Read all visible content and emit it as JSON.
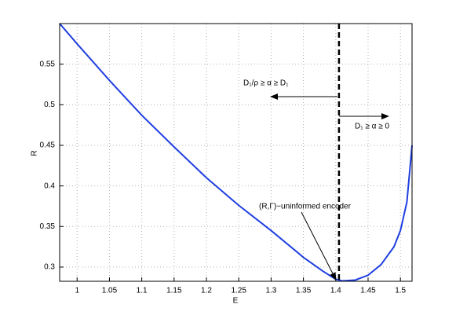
{
  "chart_data": {
    "type": "line",
    "xlabel": "E",
    "ylabel": "R",
    "series": [
      {
        "color": "#1f3fe0",
        "x": [
          0.973,
          1.0,
          1.05,
          1.1,
          1.15,
          1.2,
          1.25,
          1.3,
          1.35,
          1.38,
          1.4,
          1.41,
          1.43,
          1.45,
          1.47,
          1.49,
          1.5,
          1.51,
          1.518
        ],
        "values": [
          0.6,
          0.575,
          0.53,
          0.487,
          0.448,
          0.41,
          0.376,
          0.345,
          0.312,
          0.295,
          0.285,
          0.283,
          0.284,
          0.29,
          0.303,
          0.325,
          0.345,
          0.38,
          0.45
        ]
      }
    ],
    "vline": 1.405,
    "annotations": [
      "D₁/ρ ≥ α ≥ D₁",
      "D₁ ≥ α ≥ 0",
      "(R,Γ)−uninformed encoder"
    ],
    "xlim": [
      0.973,
      1.518
    ],
    "ylim": [
      0.2825,
      0.6
    ],
    "xticks": [
      1,
      1.05,
      1.1,
      1.15,
      1.2,
      1.25,
      1.3,
      1.35,
      1.4,
      1.45,
      1.5
    ],
    "yticks": [
      0.3,
      0.35,
      0.4,
      0.45,
      0.5,
      0.55
    ],
    "grid": true
  }
}
